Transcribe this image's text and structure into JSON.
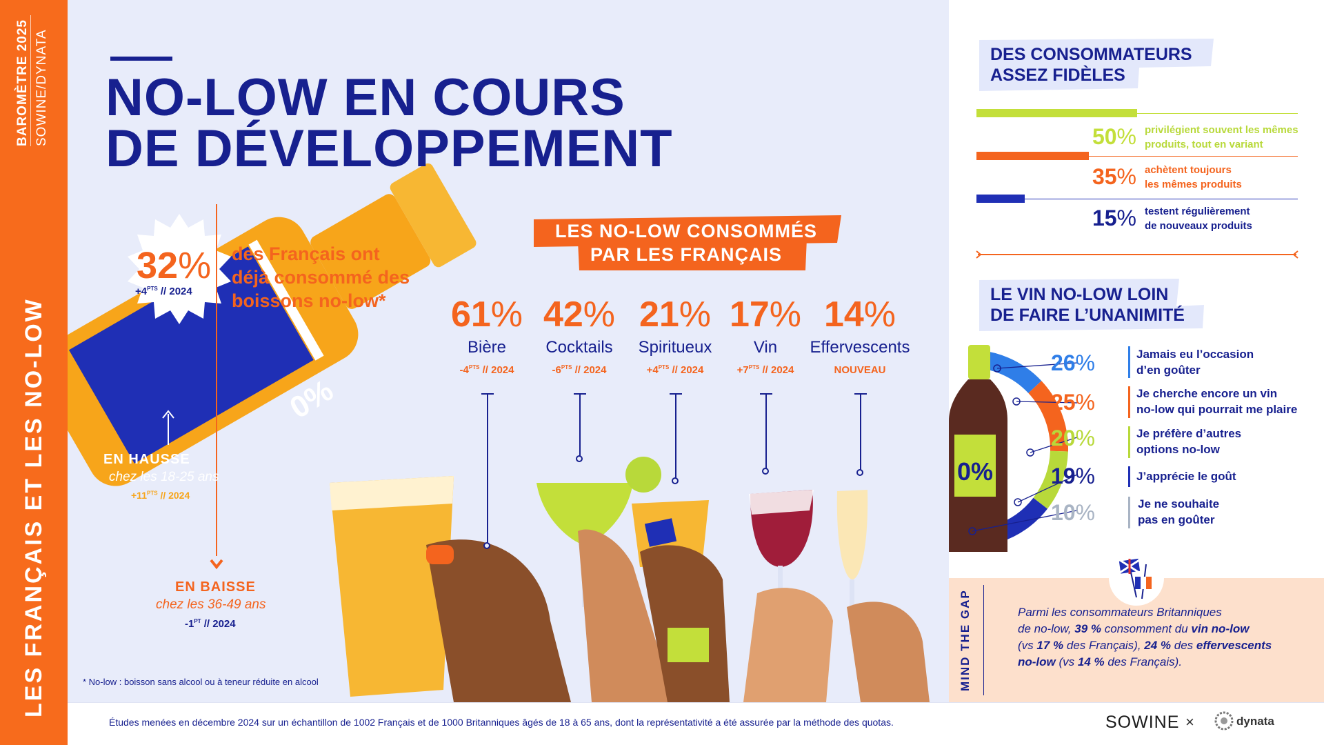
{
  "strip": {
    "year_label": "BAROMÈTRE 2025",
    "source_label": "SOWINE/DYNATA",
    "main_label": "LES FRANÇAIS ET LES NO-LOW"
  },
  "title": {
    "line1": "NO-LOW EN COURS",
    "line2": "DE DÉVELOPPEMENT"
  },
  "overall": {
    "value": "32",
    "unit": "%",
    "delta": "+4",
    "delta_sup": "PTS",
    "delta_year": "// 2024",
    "text_line1": "des Français  ont",
    "text_line2": "déjà consommé des",
    "text_line3": "boissons no-low*"
  },
  "trend_up": {
    "title": "EN HAUSSE",
    "subtitle": "chez les 18-25 ans",
    "delta": "+11",
    "delta_sup": "PTS",
    "delta_year": "// 2024"
  },
  "trend_down": {
    "title": "EN BAISSE",
    "subtitle": "chez les 36-49 ans",
    "delta": "-1",
    "delta_sup": "PT",
    "delta_year": "// 2024"
  },
  "bottle_label": "0%",
  "footnote": "* No-low : boisson sans alcool ou à teneur réduite en alcool",
  "consumed": {
    "title_line1": "LES NO-LOW CONSOMMÉS",
    "title_line2": "PAR LES FRANÇAIS",
    "items": [
      {
        "value": "61",
        "unit": "%",
        "name": "Bière",
        "delta": "-4",
        "delta_sup": "PTS",
        "delta_year": "// 2024"
      },
      {
        "value": "42",
        "unit": "%",
        "name": "Cocktails",
        "delta": "-6",
        "delta_sup": "PTS",
        "delta_year": "// 2024"
      },
      {
        "value": "21",
        "unit": "%",
        "name": "Spiritueux",
        "delta": "+4",
        "delta_sup": "PTS",
        "delta_year": "// 2024"
      },
      {
        "value": "17",
        "unit": "%",
        "name": "Vin",
        "delta": "+7",
        "delta_sup": "PTS",
        "delta_year": "// 2024"
      },
      {
        "value": "14",
        "unit": "%",
        "name": "Effervescents",
        "delta": "NOUVEAU",
        "delta_sup": "",
        "delta_year": ""
      }
    ]
  },
  "loyalty": {
    "title_line1": "DES CONSOMMATEURS",
    "title_line2": "ASSEZ FIDÈLES",
    "items": [
      {
        "value": "50",
        "unit": "%",
        "fraction": 0.5,
        "color": "#c3df3a",
        "text_line1": "privilégient souvent les mêmes",
        "text_line2": "produits, tout en variant"
      },
      {
        "value": "35",
        "unit": "%",
        "fraction": 0.35,
        "color": "#f4641e",
        "text_line1": "achètent toujours",
        "text_line2": "les mêmes produits"
      },
      {
        "value": "15",
        "unit": "%",
        "fraction": 0.15,
        "color": "#1f2fb5",
        "text_line1": "testent régulièrement",
        "text_line2": "de nouveaux produits"
      }
    ]
  },
  "wine_opinion": {
    "title_line1": "LE VIN NO-LOW LOIN",
    "title_line2": "DE FAIRE L’UNANIMITÉ",
    "bottle_label": "0%",
    "items": [
      {
        "value": "26",
        "unit": "%",
        "color": "#2f7ee8",
        "text_line1": "Jamais eu l’occasion",
        "text_line2": "d’en goûter"
      },
      {
        "value": "25",
        "unit": "%",
        "color": "#f4641e",
        "text_line1": "Je cherche encore un vin",
        "text_line2": "no-low qui pourrait me plaire"
      },
      {
        "value": "20",
        "unit": "%",
        "color": "#b8d93a",
        "text_line1": "Je préfère d’autres",
        "text_line2": "options no-low"
      },
      {
        "value": "19",
        "unit": "%",
        "color": "#1f2fb5",
        "text_line1": "J’apprécie le goût",
        "text_line2": ""
      },
      {
        "value": "10",
        "unit": "%",
        "color": "#a9b4c4",
        "text_line1": "Je ne souhaite",
        "text_line2": "pas en goûter"
      }
    ]
  },
  "mind_the_gap": {
    "label": "MIND THE GAP",
    "t1": "Parmi les consommateurs Britanniques",
    "t2": "de no-low, ",
    "t3": "39 %",
    "t4": " consomment du ",
    "t5": "vin no-low",
    "t6": "(vs ",
    "t7": "17 %",
    "t8": " des Français), ",
    "t9": "24 %",
    "t10": " des ",
    "t11": "effervescents",
    "t12": "no-low",
    "t13": " (vs ",
    "t14": "14 %",
    "t15": " des Français)."
  },
  "footer": {
    "text": "Études menées en décembre 2024 sur un échantillon de 1002 Français et de 1000 Britanniques âgés de 18 à 65 ans, dont la représentativité a été assurée par la méthode des quotas.",
    "logo_left": "SOWINE",
    "separator": "×",
    "logo_right": "dynata"
  }
}
